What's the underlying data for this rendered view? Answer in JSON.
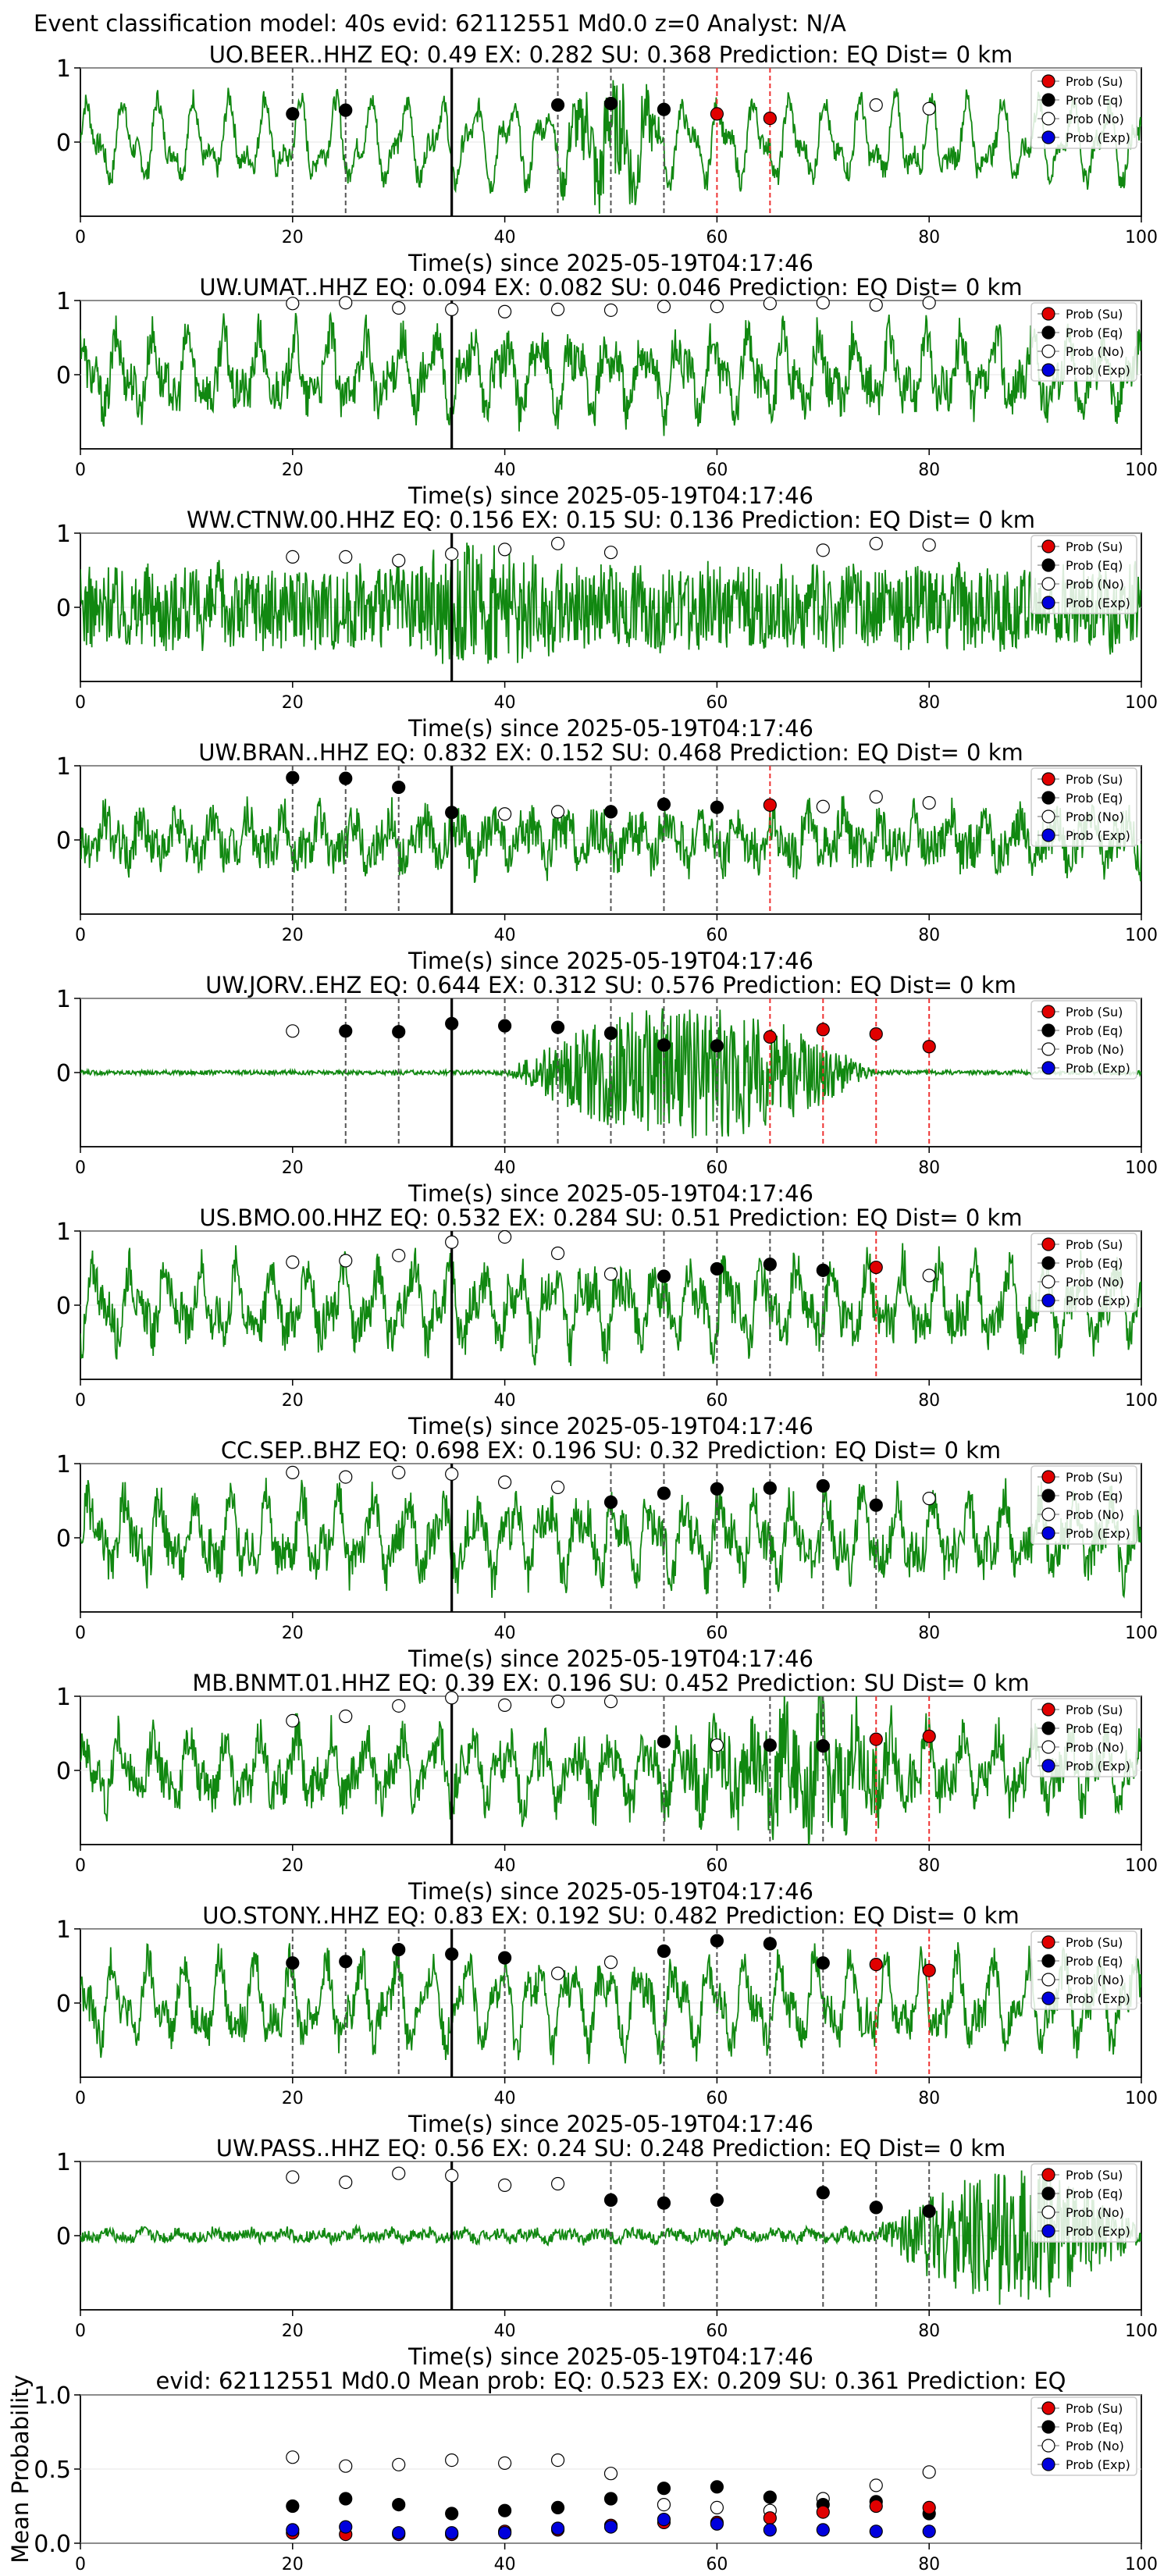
{
  "figure_title": "Event classification model: 40s evid: 62112551 Md0.0 z=0 Analyst: N/A",
  "legend_labels": [
    "Prob (Su)",
    "Prob (Eq)",
    "Prob (No)",
    "Prob (Exp)"
  ],
  "colors": {
    "su": "#e00000",
    "eq": "#000000",
    "no": "#ffffff",
    "exp": "#0000dd",
    "trace": "#118811"
  },
  "xlabel": "Time(s) since 2025-05-19T04:17:46",
  "chart_data": [
    {
      "type": "line",
      "title": "UO.BEER..HHZ   EQ: 0.49  EX: 0.282  SU: 0.368   Prediction: EQ    Dist= 0 km",
      "xlim": [
        0,
        100
      ],
      "ylim": [
        -1,
        1
      ],
      "yticks": [
        "1",
        "0"
      ],
      "xticks": [
        "0",
        "20",
        "40",
        "60",
        "80",
        "100"
      ],
      "xlabel": "Time(s) since 2025-05-19T04:17:46",
      "noise": 0.15,
      "wave": 0.55,
      "burst": [
        45,
        55,
        0.5
      ],
      "eq_lines": [
        20,
        25,
        45,
        50,
        55
      ],
      "su_lines": [
        60,
        65
      ],
      "points": {
        "no": [
          [
            75,
            0.5
          ],
          [
            80,
            0.45
          ]
        ],
        "eq": [
          [
            20,
            0.38
          ],
          [
            25,
            0.43
          ],
          [
            45,
            0.5
          ],
          [
            50,
            0.52
          ],
          [
            55,
            0.44
          ]
        ],
        "su": [
          [
            60,
            0.38
          ],
          [
            65,
            0.32
          ]
        ]
      }
    },
    {
      "type": "line",
      "title": "UW.UMAT..HHZ   EQ: 0.094  EX: 0.082  SU: 0.046   Prediction: EQ    Dist= 0 km",
      "xlim": [
        0,
        100
      ],
      "ylim": [
        -1,
        1
      ],
      "yticks": [
        "1",
        "0"
      ],
      "xticks": [
        "0",
        "20",
        "40",
        "60",
        "80",
        "100"
      ],
      "xlabel": "Time(s) since 2025-05-19T04:17:46",
      "noise": 0.3,
      "wave": 0.5,
      "burst": null,
      "eq_lines": [],
      "su_lines": [],
      "points": {
        "no": [
          [
            20,
            0.96
          ],
          [
            25,
            0.97
          ],
          [
            30,
            0.9
          ],
          [
            35,
            0.88
          ],
          [
            40,
            0.85
          ],
          [
            45,
            0.88
          ],
          [
            50,
            0.87
          ],
          [
            55,
            0.92
          ],
          [
            60,
            0.92
          ],
          [
            65,
            0.96
          ],
          [
            70,
            0.97
          ],
          [
            75,
            0.94
          ],
          [
            80,
            0.97
          ]
        ],
        "eq": [],
        "su": []
      }
    },
    {
      "type": "line",
      "title": "WW.CTNW.00.HHZ   EQ: 0.156  EX: 0.15  SU: 0.136   Prediction: EQ    Dist= 0 km",
      "xlim": [
        0,
        100
      ],
      "ylim": [
        -1,
        1
      ],
      "yticks": [
        "1",
        "0"
      ],
      "xticks": [
        "0",
        "20",
        "40",
        "60",
        "80",
        "100"
      ],
      "xlabel": "Time(s) since 2025-05-19T04:17:46",
      "noise": 0.55,
      "wave": 0.1,
      "burst": [
        30,
        45,
        0.3
      ],
      "eq_lines": [],
      "su_lines": [],
      "points": {
        "no": [
          [
            20,
            0.68
          ],
          [
            25,
            0.68
          ],
          [
            30,
            0.63
          ],
          [
            35,
            0.72
          ],
          [
            40,
            0.78
          ],
          [
            45,
            0.86
          ],
          [
            50,
            0.74
          ],
          [
            70,
            0.77
          ],
          [
            75,
            0.86
          ],
          [
            80,
            0.84
          ]
        ],
        "eq": [],
        "su": []
      }
    },
    {
      "type": "line",
      "title": "UW.BRAN..HHZ   EQ: 0.832  EX: 0.152  SU: 0.468   Prediction: EQ    Dist= 0 km",
      "xlim": [
        0,
        100
      ],
      "ylim": [
        -1,
        1
      ],
      "yticks": [
        "1",
        "0"
      ],
      "xticks": [
        "0",
        "20",
        "40",
        "60",
        "80",
        "100"
      ],
      "xlabel": "Time(s) since 2025-05-19T04:17:46",
      "noise": 0.3,
      "wave": 0.3,
      "burst": null,
      "eq_lines": [
        20,
        25,
        30,
        50,
        55,
        60
      ],
      "su_lines": [
        65
      ],
      "points": {
        "no": [
          [
            40,
            0.35
          ],
          [
            45,
            0.38
          ],
          [
            70,
            0.45
          ],
          [
            75,
            0.58
          ],
          [
            80,
            0.5
          ]
        ],
        "eq": [
          [
            20,
            0.84
          ],
          [
            25,
            0.83
          ],
          [
            30,
            0.71
          ],
          [
            35,
            0.37
          ],
          [
            50,
            0.38
          ],
          [
            55,
            0.48
          ],
          [
            60,
            0.44
          ]
        ],
        "su": [
          [
            65,
            0.47
          ]
        ]
      }
    },
    {
      "type": "line",
      "title": "UW.JORV..EHZ   EQ: 0.644  EX: 0.312  SU: 0.576   Prediction: EQ    Dist= 0 km",
      "xlim": [
        0,
        100
      ],
      "ylim": [
        -1,
        1
      ],
      "yticks": [
        "1",
        "0"
      ],
      "xticks": [
        "0",
        "20",
        "40",
        "60",
        "80",
        "100"
      ],
      "xlabel": "Time(s) since 2025-05-19T04:17:46",
      "noise": 0.03,
      "wave": 0.0,
      "burst": [
        40,
        75,
        0.9
      ],
      "eq_lines": [
        25,
        30,
        40,
        45,
        50,
        55,
        60
      ],
      "su_lines": [
        65,
        70,
        75,
        80
      ],
      "points": {
        "no": [
          [
            20,
            0.56
          ]
        ],
        "eq": [
          [
            25,
            0.56
          ],
          [
            30,
            0.55
          ],
          [
            35,
            0.66
          ],
          [
            40,
            0.63
          ],
          [
            45,
            0.61
          ],
          [
            50,
            0.53
          ],
          [
            55,
            0.37
          ],
          [
            60,
            0.36
          ]
        ],
        "su": [
          [
            65,
            0.48
          ],
          [
            70,
            0.58
          ],
          [
            75,
            0.52
          ],
          [
            80,
            0.35
          ]
        ]
      }
    },
    {
      "type": "line",
      "title": "US.BMO.00.HHZ   EQ: 0.532  EX: 0.284  SU: 0.51   Prediction: EQ    Dist= 0 km",
      "xlim": [
        0,
        100
      ],
      "ylim": [
        -1,
        1
      ],
      "yticks": [
        "1",
        "0"
      ],
      "xticks": [
        "0",
        "20",
        "40",
        "60",
        "80",
        "100"
      ],
      "xlabel": "Time(s) since 2025-05-19T04:17:46",
      "noise": 0.3,
      "wave": 0.5,
      "burst": null,
      "eq_lines": [
        55,
        60,
        65,
        70
      ],
      "su_lines": [
        75
      ],
      "points": {
        "no": [
          [
            20,
            0.58
          ],
          [
            25,
            0.6
          ],
          [
            30,
            0.67
          ],
          [
            35,
            0.85
          ],
          [
            40,
            0.92
          ],
          [
            45,
            0.7
          ],
          [
            50,
            0.42
          ],
          [
            80,
            0.4
          ]
        ],
        "eq": [
          [
            55,
            0.39
          ],
          [
            60,
            0.49
          ],
          [
            65,
            0.55
          ],
          [
            70,
            0.47
          ]
        ],
        "su": [
          [
            75,
            0.51
          ]
        ]
      }
    },
    {
      "type": "line",
      "title": "CC.SEP..BHZ   EQ: 0.698  EX: 0.196  SU: 0.32   Prediction: EQ    Dist= 0 km",
      "xlim": [
        0,
        100
      ],
      "ylim": [
        -1,
        1
      ],
      "yticks": [
        "1",
        "0"
      ],
      "xticks": [
        "0",
        "20",
        "40",
        "60",
        "80",
        "100"
      ],
      "xlabel": "Time(s) since 2025-05-19T04:17:46",
      "noise": 0.3,
      "wave": 0.5,
      "burst": null,
      "eq_lines": [
        50,
        55,
        60,
        65,
        70,
        75
      ],
      "su_lines": [],
      "points": {
        "no": [
          [
            20,
            0.88
          ],
          [
            25,
            0.82
          ],
          [
            30,
            0.88
          ],
          [
            35,
            0.86
          ],
          [
            40,
            0.75
          ],
          [
            45,
            0.68
          ],
          [
            80,
            0.53
          ]
        ],
        "eq": [
          [
            50,
            0.48
          ],
          [
            55,
            0.6
          ],
          [
            60,
            0.66
          ],
          [
            65,
            0.67
          ],
          [
            70,
            0.7
          ],
          [
            75,
            0.44
          ]
        ],
        "su": []
      }
    },
    {
      "type": "line",
      "title": "MB.BNMT.01.HHZ   EQ: 0.39  EX: 0.196  SU: 0.452   Prediction: SU    Dist= 0 km",
      "xlim": [
        0,
        100
      ],
      "ylim": [
        -1,
        1
      ],
      "yticks": [
        "1",
        "0"
      ],
      "xticks": [
        "0",
        "20",
        "40",
        "60",
        "80",
        "100"
      ],
      "xlabel": "Time(s) since 2025-05-19T04:17:46",
      "noise": 0.3,
      "wave": 0.45,
      "burst": [
        55,
        80,
        0.4
      ],
      "eq_lines": [
        55,
        65,
        70
      ],
      "su_lines": [
        75,
        80
      ],
      "points": {
        "no": [
          [
            20,
            0.67
          ],
          [
            25,
            0.73
          ],
          [
            30,
            0.87
          ],
          [
            35,
            0.98
          ],
          [
            40,
            0.88
          ],
          [
            45,
            0.93
          ],
          [
            50,
            0.93
          ],
          [
            60,
            0.34
          ]
        ],
        "eq": [
          [
            55,
            0.39
          ],
          [
            65,
            0.34
          ],
          [
            70,
            0.33
          ]
        ],
        "su": [
          [
            75,
            0.42
          ],
          [
            80,
            0.46
          ]
        ]
      }
    },
    {
      "type": "line",
      "title": "UO.STONY..HHZ   EQ: 0.83  EX: 0.192  SU: 0.482   Prediction: EQ    Dist= 0 km",
      "xlim": [
        0,
        100
      ],
      "ylim": [
        -1,
        1
      ],
      "yticks": [
        "1",
        "0"
      ],
      "xticks": [
        "0",
        "20",
        "40",
        "60",
        "80",
        "100"
      ],
      "xlabel": "Time(s) since 2025-05-19T04:17:46",
      "noise": 0.25,
      "wave": 0.55,
      "burst": null,
      "eq_lines": [
        20,
        25,
        30,
        35,
        40,
        55,
        60,
        65,
        70
      ],
      "su_lines": [
        75,
        80
      ],
      "points": {
        "no": [
          [
            45,
            0.4
          ],
          [
            50,
            0.55
          ]
        ],
        "eq": [
          [
            20,
            0.54
          ],
          [
            25,
            0.56
          ],
          [
            30,
            0.72
          ],
          [
            35,
            0.66
          ],
          [
            40,
            0.61
          ],
          [
            55,
            0.7
          ],
          [
            60,
            0.84
          ],
          [
            65,
            0.8
          ],
          [
            70,
            0.54
          ]
        ],
        "su": [
          [
            75,
            0.52
          ],
          [
            80,
            0.44
          ]
        ]
      }
    },
    {
      "type": "line",
      "title": "UW.PASS..HHZ   EQ: 0.56  EX: 0.24  SU: 0.248   Prediction: EQ    Dist= 0 km",
      "xlim": [
        0,
        100
      ],
      "ylim": [
        -1,
        1
      ],
      "yticks": [
        "1",
        "0"
      ],
      "xticks": [
        "0",
        "20",
        "40",
        "60",
        "80",
        "100"
      ],
      "xlabel": "Time(s) since 2025-05-19T04:17:46",
      "noise": 0.08,
      "wave": 0.05,
      "burst": [
        75,
        100,
        0.85
      ],
      "eq_lines": [
        50,
        55,
        60,
        70,
        75,
        80
      ],
      "su_lines": [],
      "points": {
        "no": [
          [
            20,
            0.79
          ],
          [
            25,
            0.72
          ],
          [
            30,
            0.84
          ],
          [
            35,
            0.81
          ],
          [
            40,
            0.68
          ],
          [
            45,
            0.7
          ]
        ],
        "eq": [
          [
            50,
            0.48
          ],
          [
            55,
            0.44
          ],
          [
            60,
            0.48
          ],
          [
            70,
            0.58
          ],
          [
            75,
            0.38
          ],
          [
            80,
            0.33
          ]
        ],
        "su": []
      }
    },
    {
      "type": "scatter",
      "title": "evid: 62112551  Md0.0   Mean prob:   EQ: 0.523  EX: 0.209  SU: 0.361   Prediction: EQ",
      "ylabel": "Mean Probability",
      "xlim": [
        0,
        100
      ],
      "ylim": [
        0,
        1
      ],
      "yticks": [
        "1.0",
        "0.5",
        "0.0"
      ],
      "xticks": [
        "0",
        "20",
        "40",
        "60",
        "80",
        "100"
      ],
      "series": [
        {
          "name": "Prob (No)",
          "x": [
            20,
            25,
            30,
            35,
            40,
            45,
            50,
            55,
            60,
            65,
            70,
            75,
            80
          ],
          "y": [
            0.58,
            0.52,
            0.53,
            0.56,
            0.54,
            0.56,
            0.47,
            0.26,
            0.24,
            0.22,
            0.3,
            0.39,
            0.48
          ]
        },
        {
          "name": "Prob (Eq)",
          "x": [
            20,
            25,
            30,
            35,
            40,
            45,
            50,
            55,
            60,
            65,
            70,
            75,
            80
          ],
          "y": [
            0.25,
            0.3,
            0.26,
            0.2,
            0.22,
            0.24,
            0.3,
            0.37,
            0.38,
            0.31,
            0.26,
            0.28,
            0.2
          ]
        },
        {
          "name": "Prob (Su)",
          "x": [
            20,
            25,
            30,
            35,
            40,
            45,
            50,
            55,
            60,
            65,
            70,
            75,
            80
          ],
          "y": [
            0.07,
            0.06,
            0.06,
            0.06,
            0.08,
            0.09,
            0.12,
            0.14,
            0.14,
            0.17,
            0.21,
            0.25,
            0.24
          ]
        },
        {
          "name": "Prob (Exp)",
          "x": [
            20,
            25,
            30,
            35,
            40,
            45,
            50,
            55,
            60,
            65,
            70,
            75,
            80
          ],
          "y": [
            0.09,
            0.11,
            0.07,
            0.07,
            0.07,
            0.1,
            0.11,
            0.16,
            0.13,
            0.09,
            0.09,
            0.08,
            0.08
          ]
        }
      ]
    }
  ]
}
